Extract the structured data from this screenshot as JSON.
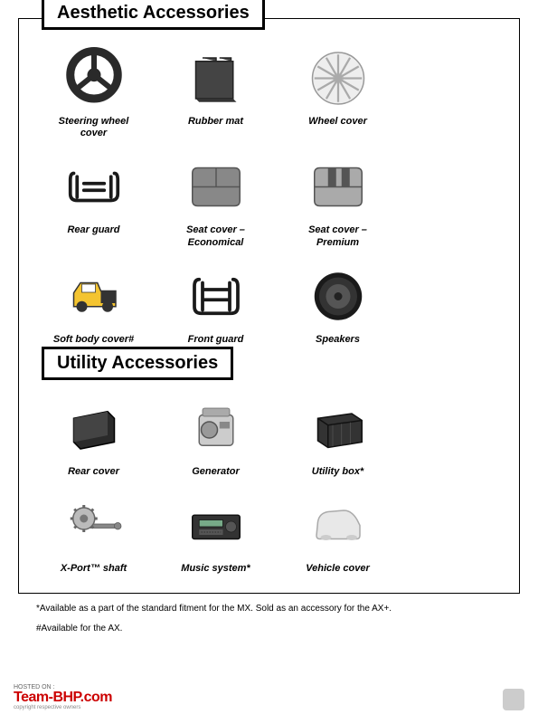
{
  "sections": {
    "aesthetic": {
      "title": "Aesthetic Accessories",
      "items": [
        {
          "label": "Steering wheel cover",
          "icon": "steering"
        },
        {
          "label": "Rubber mat",
          "icon": "mat"
        },
        {
          "label": "Wheel cover",
          "icon": "wheel"
        },
        {
          "label": "Rear guard",
          "icon": "rearguard"
        },
        {
          "label": "Seat cover – Economical",
          "icon": "seat1"
        },
        {
          "label": "Seat cover – Premium",
          "icon": "seat2"
        },
        {
          "label": "Soft body cover#",
          "icon": "vehicle"
        },
        {
          "label": "Front guard",
          "icon": "frontguard"
        },
        {
          "label": "Speakers",
          "icon": "speaker"
        }
      ]
    },
    "utility": {
      "title": "Utility Accessories",
      "items": [
        {
          "label": "Rear cover",
          "icon": "rearcover"
        },
        {
          "label": "Generator",
          "icon": "generator"
        },
        {
          "label": "Utility box*",
          "icon": "utilitybox"
        },
        {
          "label": "X-Port™ shaft",
          "icon": "shaft"
        },
        {
          "label": "Music system*",
          "icon": "music"
        },
        {
          "label": "Vehicle cover",
          "icon": "vehiclecover"
        }
      ]
    }
  },
  "footnotes": [
    "*Available as a part of the standard fitment for the MX. Sold as an accessory for the AX+.",
    "#Available for the AX."
  ],
  "watermark": {
    "hosted": "HOSTED ON :",
    "brand": "Team-BHP.com",
    "sub": "copyright respective owners"
  },
  "colors": {
    "dark": "#2a2a2a",
    "gray": "#999",
    "light": "#ccc",
    "yellow": "#f4c430"
  }
}
